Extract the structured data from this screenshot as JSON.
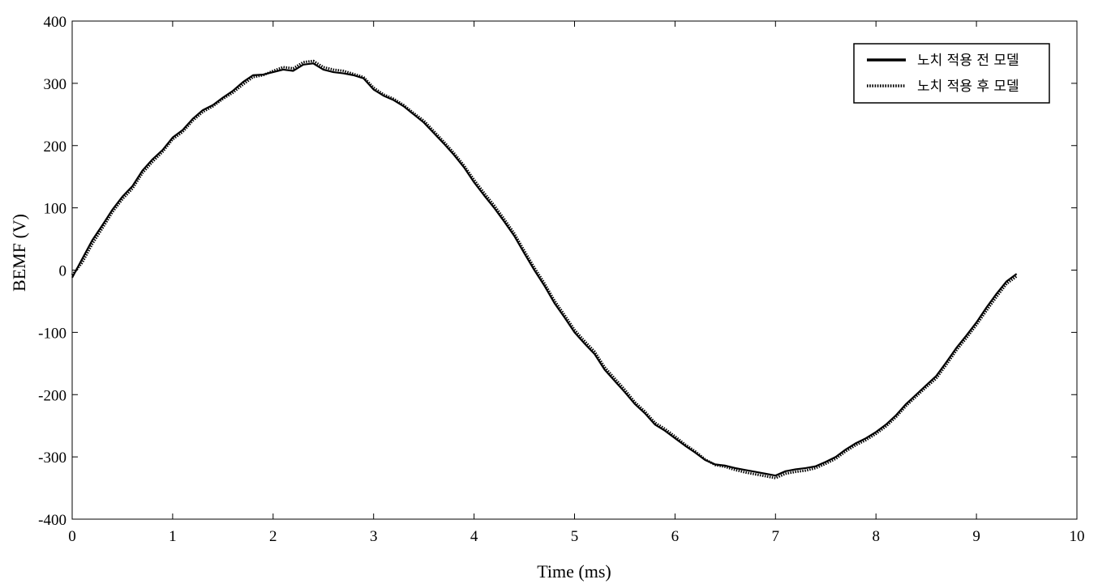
{
  "chart_data": {
    "type": "line",
    "xlabel": "Time (ms)",
    "ylabel": "BEMF (V)",
    "xlim": [
      0,
      10
    ],
    "ylim": [
      -400,
      400
    ],
    "xticks": [
      0,
      1,
      2,
      3,
      4,
      5,
      6,
      7,
      8,
      9,
      10
    ],
    "yticks": [
      -400,
      -300,
      -200,
      -100,
      0,
      100,
      200,
      300,
      400
    ],
    "grid": false,
    "legend_position": "top-right",
    "series": [
      {
        "name": "노치 적용 전 모델",
        "style": "solid",
        "color": "#000000",
        "x": [
          0,
          0.1,
          0.2,
          0.3,
          0.4,
          0.5,
          0.6,
          0.7,
          0.8,
          0.9,
          1.0,
          1.1,
          1.2,
          1.3,
          1.4,
          1.5,
          1.6,
          1.7,
          1.8,
          1.9,
          2.0,
          2.1,
          2.2,
          2.3,
          2.4,
          2.5,
          2.6,
          2.7,
          2.8,
          2.9,
          3.0,
          3.1,
          3.2,
          3.3,
          3.4,
          3.5,
          3.6,
          3.7,
          3.8,
          3.9,
          4.0,
          4.1,
          4.2,
          4.3,
          4.4,
          4.5,
          4.6,
          4.7,
          4.8,
          4.9,
          5.0,
          5.1,
          5.2,
          5.3,
          5.4,
          5.5,
          5.6,
          5.7,
          5.8,
          5.9,
          6.0,
          6.1,
          6.2,
          6.3,
          6.4,
          6.5,
          6.6,
          6.7,
          6.8,
          6.9,
          7.0,
          7.1,
          7.2,
          7.3,
          7.4,
          7.5,
          7.6,
          7.7,
          7.8,
          7.9,
          8.0,
          8.1,
          8.2,
          8.3,
          8.4,
          8.5,
          8.6,
          8.7,
          8.8,
          8.9,
          9.0,
          9.1,
          9.2,
          9.3,
          9.4
        ],
        "y": [
          -12,
          18,
          48,
          72,
          97,
          118,
          135,
          160,
          178,
          193,
          213,
          225,
          243,
          257,
          265,
          277,
          288,
          302,
          313,
          314,
          318,
          322,
          320,
          330,
          332,
          322,
          318,
          316,
          313,
          308,
          290,
          280,
          273,
          263,
          250,
          237,
          220,
          203,
          185,
          165,
          141,
          120,
          100,
          78,
          55,
          27,
          0,
          -25,
          -53,
          -76,
          -100,
          -118,
          -135,
          -160,
          -178,
          -196,
          -215,
          -230,
          -248,
          -258,
          -270,
          -282,
          -293,
          -305,
          -312,
          -314,
          -318,
          -321,
          -324,
          -327,
          -330,
          -323,
          -320,
          -318,
          -315,
          -308,
          -300,
          -288,
          -278,
          -270,
          -260,
          -248,
          -233,
          -215,
          -200,
          -185,
          -170,
          -148,
          -125,
          -105,
          -84,
          -60,
          -38,
          -18,
          -6
        ]
      },
      {
        "name": "노치 적용 후 모델",
        "style": "dotted",
        "color": "#000000",
        "x": [
          0,
          0.1,
          0.2,
          0.3,
          0.4,
          0.5,
          0.6,
          0.7,
          0.8,
          0.9,
          1.0,
          1.1,
          1.2,
          1.3,
          1.4,
          1.5,
          1.6,
          1.7,
          1.8,
          1.9,
          2.0,
          2.1,
          2.2,
          2.3,
          2.4,
          2.5,
          2.6,
          2.7,
          2.8,
          2.9,
          3.0,
          3.1,
          3.2,
          3.3,
          3.4,
          3.5,
          3.6,
          3.7,
          3.8,
          3.9,
          4.0,
          4.1,
          4.2,
          4.3,
          4.4,
          4.5,
          4.6,
          4.7,
          4.8,
          4.9,
          5.0,
          5.1,
          5.2,
          5.3,
          5.4,
          5.5,
          5.6,
          5.7,
          5.8,
          5.9,
          6.0,
          6.1,
          6.2,
          6.3,
          6.4,
          6.5,
          6.6,
          6.7,
          6.8,
          6.9,
          7.0,
          7.1,
          7.2,
          7.3,
          7.4,
          7.5,
          7.6,
          7.7,
          7.8,
          7.9,
          8.0,
          8.1,
          8.2,
          8.3,
          8.4,
          8.5,
          8.6,
          8.7,
          8.8,
          8.9,
          9.0,
          9.1,
          9.2,
          9.3,
          9.4
        ],
        "y": [
          -8,
          12,
          42,
          67,
          93,
          114,
          131,
          156,
          174,
          190,
          210,
          222,
          240,
          254,
          263,
          275,
          285,
          298,
          310,
          313,
          320,
          326,
          324,
          334,
          336,
          326,
          322,
          320,
          315,
          310,
          293,
          282,
          275,
          265,
          252,
          240,
          223,
          206,
          188,
          168,
          145,
          124,
          104,
          82,
          59,
          31,
          4,
          -21,
          -49,
          -72,
          -96,
          -114,
          -131,
          -156,
          -174,
          -192,
          -212,
          -227,
          -245,
          -255,
          -267,
          -280,
          -291,
          -304,
          -313,
          -316,
          -321,
          -325,
          -328,
          -331,
          -334,
          -327,
          -324,
          -322,
          -318,
          -311,
          -303,
          -291,
          -281,
          -273,
          -263,
          -251,
          -236,
          -218,
          -203,
          -188,
          -174,
          -152,
          -129,
          -109,
          -88,
          -65,
          -43,
          -22,
          -10
        ]
      }
    ]
  }
}
